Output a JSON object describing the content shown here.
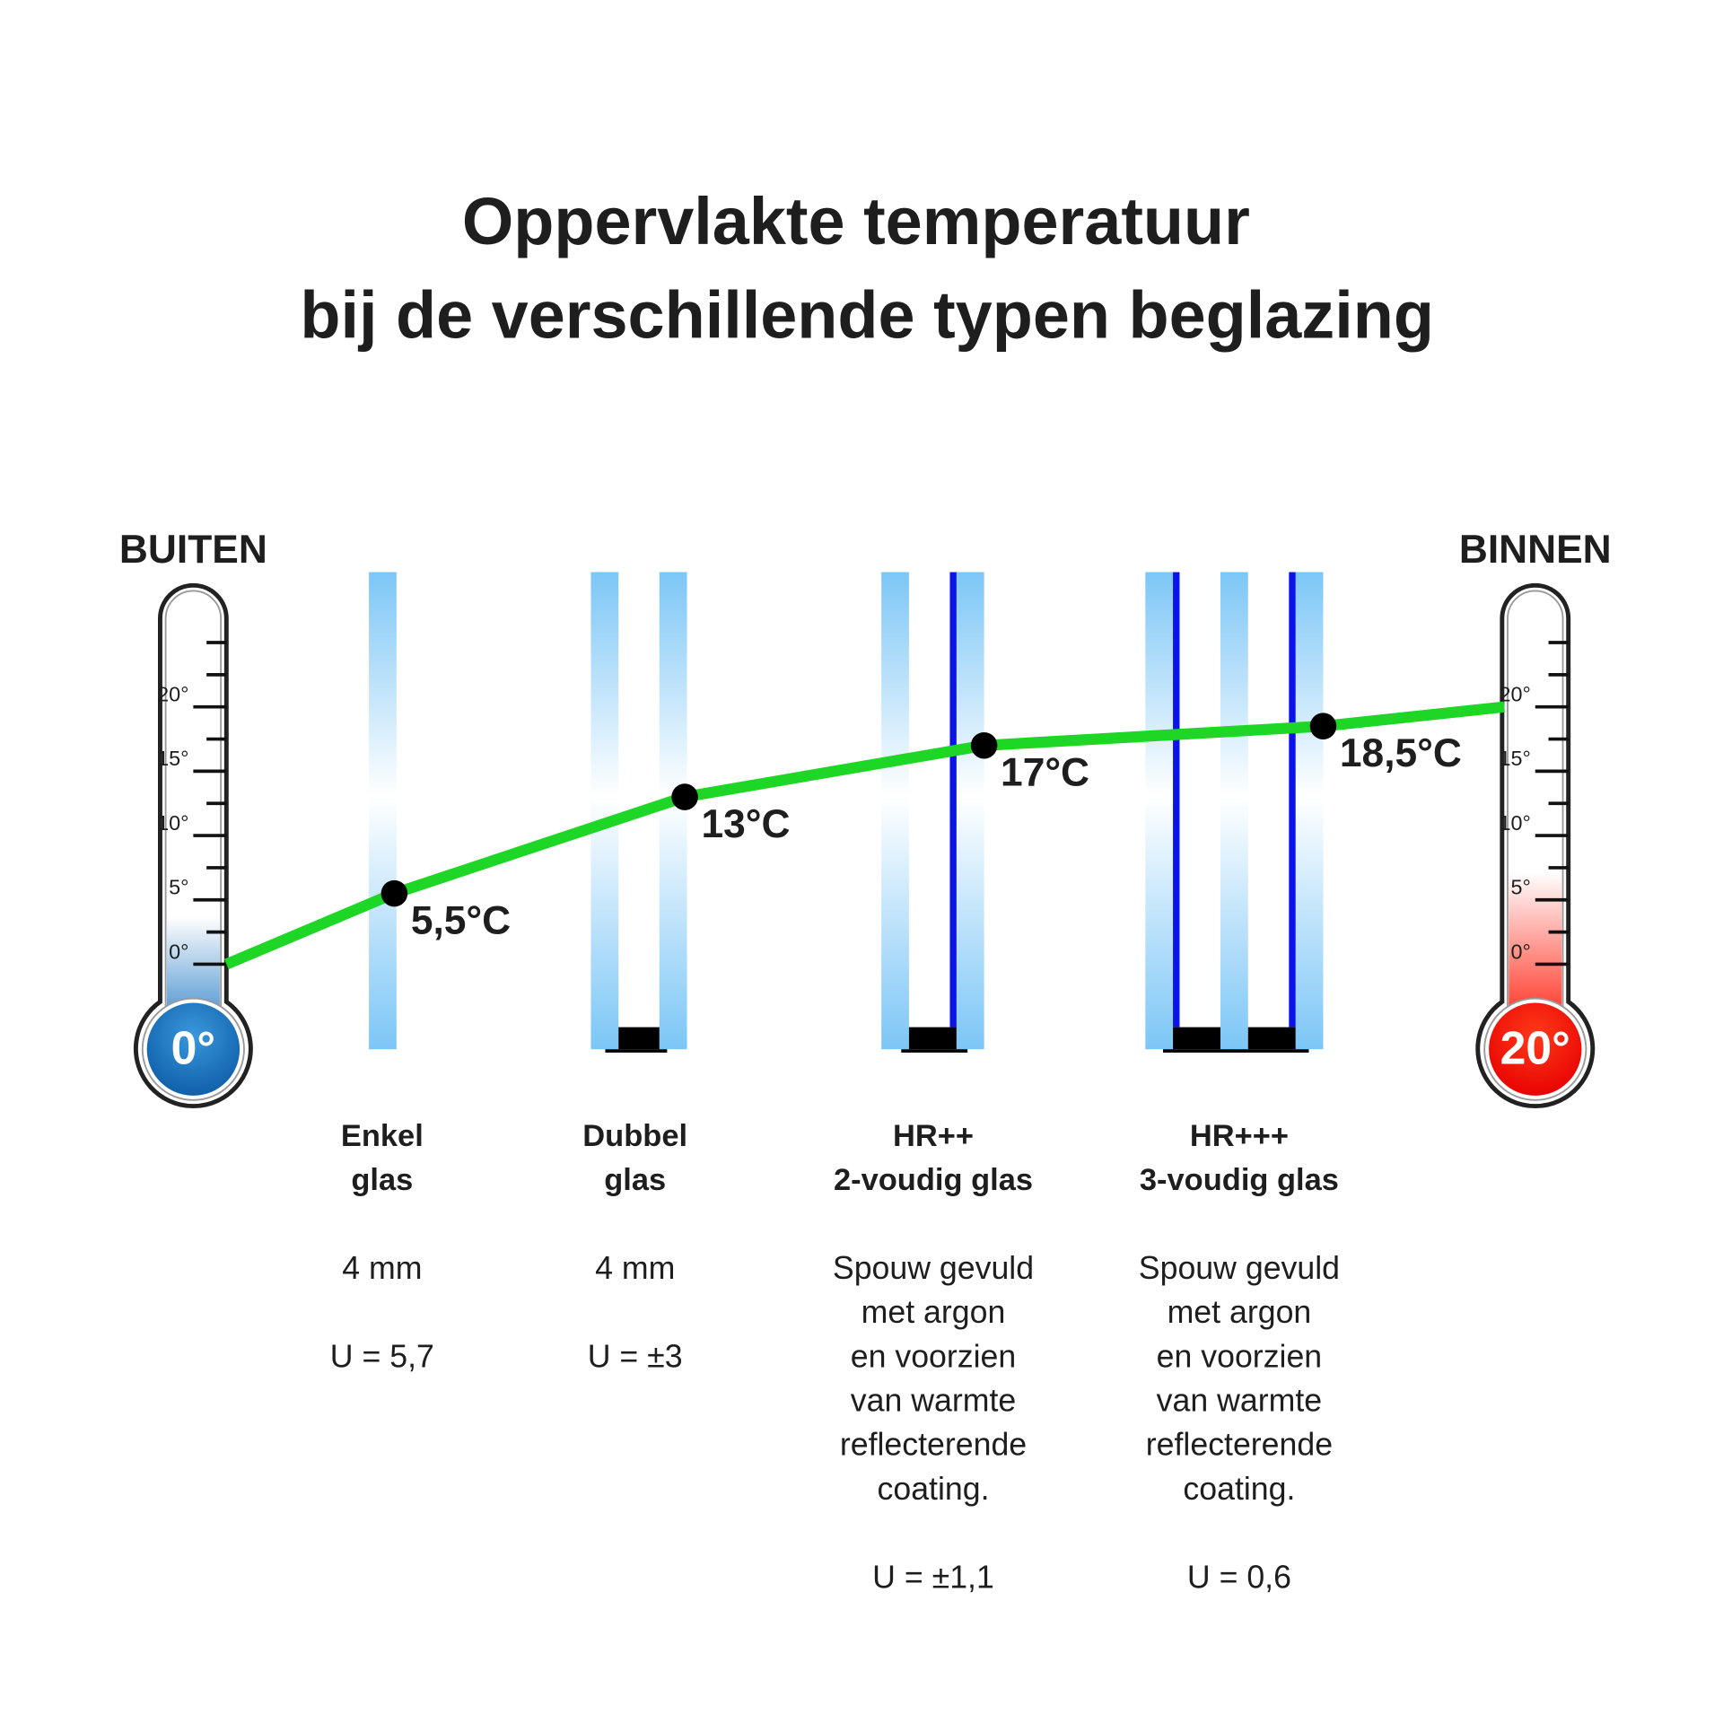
{
  "title": [
    "Oppervlakte temperatuur",
    "bij de verschillende typen beglazing"
  ],
  "thermometers": [
    {
      "side_label": "BUITEN",
      "bulb": {
        "value": 0,
        "label": "0°"
      },
      "ticks": [
        {
          "value": 20,
          "label": "20°"
        },
        {
          "value": 15,
          "label": "15°"
        },
        {
          "value": 10,
          "label": "10°"
        },
        {
          "value": 5,
          "label": "5°"
        },
        {
          "value": 0,
          "label": "0°"
        }
      ]
    },
    {
      "side_label": "BINNEN",
      "bulb": {
        "value": 20,
        "label": "20°"
      },
      "ticks": [
        {
          "value": 20,
          "label": "20°"
        },
        {
          "value": 15,
          "label": "15°"
        },
        {
          "value": 10,
          "label": "10°"
        },
        {
          "value": 5,
          "label": "5°"
        },
        {
          "value": 0,
          "label": "0°"
        }
      ]
    }
  ],
  "points": [
    {
      "value": 5.5,
      "label": "5,5°C"
    },
    {
      "value": 13,
      "label": "13°C"
    },
    {
      "value": 17,
      "label": "17°C"
    },
    {
      "value": 18.5,
      "label": "18,5°C"
    }
  ],
  "glazing": [
    {
      "name": [
        "Enkel",
        "glas"
      ],
      "description": [
        "4 mm"
      ],
      "u_value": "U = 5,7"
    },
    {
      "name": [
        "Dubbel",
        "glas"
      ],
      "description": [
        "4 mm"
      ],
      "u_value": "U = ±3"
    },
    {
      "name": [
        "HR++",
        "2-voudig glas"
      ],
      "description": [
        "Spouw gevuld",
        "met argon",
        "en voorzien",
        "van warmte",
        "reflecterende",
        "coating."
      ],
      "u_value": "U = ±1,1"
    },
    {
      "name": [
        "HR+++",
        "3-voudig glas"
      ],
      "description": [
        "Spouw gevuld",
        "met argon",
        "en voorzien",
        "van warmte",
        "reflecterende",
        "coating."
      ],
      "u_value": "U = 0,6"
    }
  ]
}
